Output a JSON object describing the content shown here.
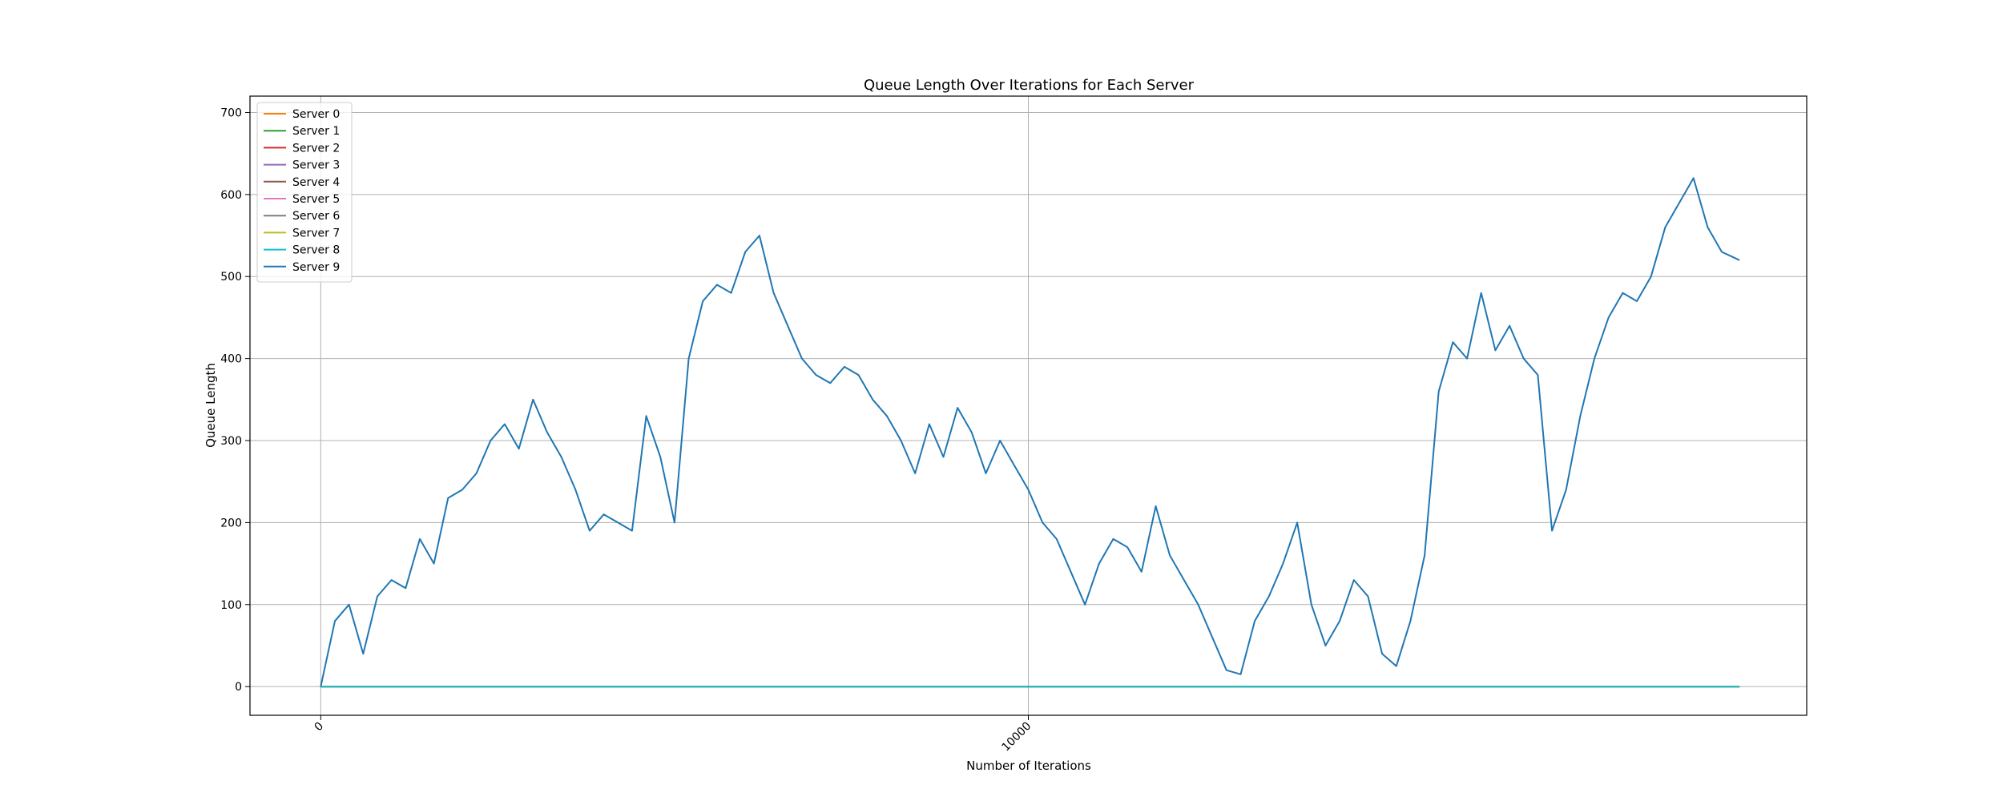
{
  "chart_data": {
    "type": "line",
    "title": "Queue Length Over Iterations for Each Server",
    "xlabel": "Number of Iterations",
    "ylabel": "Queue Length",
    "xlim": [
      -1000,
      21000
    ],
    "ylim": [
      -35,
      720
    ],
    "x_ticks": [
      0,
      10000
    ],
    "y_ticks": [
      0,
      100,
      200,
      300,
      400,
      500,
      600,
      700
    ],
    "grid": true,
    "legend_position": "top-left",
    "series": [
      {
        "name": "Server 0",
        "color": "#ff7f0e",
        "points": [
          [
            0,
            0
          ],
          [
            20050,
            0
          ]
        ]
      },
      {
        "name": "Server 1",
        "color": "#2ca02c",
        "points": [
          [
            0,
            0
          ],
          [
            20050,
            0
          ]
        ]
      },
      {
        "name": "Server 2",
        "color": "#d62728",
        "points": [
          [
            0,
            0
          ],
          [
            20050,
            0
          ]
        ]
      },
      {
        "name": "Server 3",
        "color": "#9467bd",
        "points": [
          [
            0,
            0
          ],
          [
            20050,
            0
          ]
        ]
      },
      {
        "name": "Server 4",
        "color": "#8c564b",
        "points": [
          [
            0,
            0
          ],
          [
            20050,
            0
          ]
        ]
      },
      {
        "name": "Server 5",
        "color": "#e377c2",
        "points": [
          [
            0,
            0
          ],
          [
            20050,
            0
          ]
        ]
      },
      {
        "name": "Server 6",
        "color": "#7f7f7f",
        "points": [
          [
            0,
            0
          ],
          [
            20050,
            0
          ]
        ]
      },
      {
        "name": "Server 7",
        "color": "#bcbd22",
        "points": [
          [
            0,
            0
          ],
          [
            20050,
            0
          ]
        ]
      },
      {
        "name": "Server 8",
        "color": "#17becf",
        "points": [
          [
            0,
            0
          ],
          [
            20050,
            0
          ]
        ]
      },
      {
        "name": "Server 9",
        "color": "#1f77b4",
        "points": [
          [
            0,
            0
          ],
          [
            200,
            80
          ],
          [
            400,
            100
          ],
          [
            600,
            40
          ],
          [
            800,
            110
          ],
          [
            1000,
            130
          ],
          [
            1200,
            120
          ],
          [
            1400,
            180
          ],
          [
            1600,
            150
          ],
          [
            1800,
            230
          ],
          [
            2000,
            240
          ],
          [
            2200,
            260
          ],
          [
            2400,
            300
          ],
          [
            2600,
            320
          ],
          [
            2800,
            290
          ],
          [
            3000,
            350
          ],
          [
            3200,
            310
          ],
          [
            3400,
            280
          ],
          [
            3600,
            240
          ],
          [
            3800,
            190
          ],
          [
            4000,
            210
          ],
          [
            4200,
            200
          ],
          [
            4400,
            190
          ],
          [
            4600,
            330
          ],
          [
            4800,
            280
          ],
          [
            5000,
            200
          ],
          [
            5200,
            400
          ],
          [
            5400,
            470
          ],
          [
            5600,
            490
          ],
          [
            5800,
            480
          ],
          [
            6000,
            530
          ],
          [
            6200,
            550
          ],
          [
            6400,
            480
          ],
          [
            6600,
            440
          ],
          [
            6800,
            400
          ],
          [
            7000,
            380
          ],
          [
            7200,
            370
          ],
          [
            7400,
            390
          ],
          [
            7600,
            380
          ],
          [
            7800,
            350
          ],
          [
            8000,
            330
          ],
          [
            8200,
            300
          ],
          [
            8400,
            260
          ],
          [
            8600,
            320
          ],
          [
            8800,
            280
          ],
          [
            9000,
            340
          ],
          [
            9200,
            310
          ],
          [
            9400,
            260
          ],
          [
            9600,
            300
          ],
          [
            9800,
            270
          ],
          [
            10000,
            240
          ],
          [
            10200,
            200
          ],
          [
            10400,
            180
          ],
          [
            10600,
            140
          ],
          [
            10800,
            100
          ],
          [
            11000,
            150
          ],
          [
            11200,
            180
          ],
          [
            11400,
            170
          ],
          [
            11600,
            140
          ],
          [
            11800,
            220
          ],
          [
            12000,
            160
          ],
          [
            12200,
            130
          ],
          [
            12400,
            100
          ],
          [
            12600,
            60
          ],
          [
            12800,
            20
          ],
          [
            13000,
            15
          ],
          [
            13200,
            80
          ],
          [
            13400,
            110
          ],
          [
            13600,
            150
          ],
          [
            13800,
            200
          ],
          [
            14000,
            100
          ],
          [
            14200,
            50
          ],
          [
            14400,
            80
          ],
          [
            14600,
            130
          ],
          [
            14800,
            110
          ],
          [
            15000,
            40
          ],
          [
            15200,
            25
          ],
          [
            15400,
            80
          ],
          [
            15600,
            160
          ],
          [
            15800,
            360
          ],
          [
            16000,
            420
          ],
          [
            16200,
            400
          ],
          [
            16400,
            480
          ],
          [
            16600,
            410
          ],
          [
            16800,
            440
          ],
          [
            17000,
            400
          ],
          [
            17200,
            380
          ],
          [
            17400,
            190
          ],
          [
            17600,
            240
          ],
          [
            17800,
            330
          ],
          [
            18000,
            400
          ],
          [
            18200,
            450
          ],
          [
            18400,
            480
          ],
          [
            18600,
            470
          ],
          [
            18800,
            500
          ],
          [
            19000,
            560
          ],
          [
            19200,
            590
          ],
          [
            19400,
            620
          ],
          [
            19600,
            560
          ],
          [
            19800,
            530
          ],
          [
            20050,
            520
          ]
        ]
      }
    ]
  }
}
